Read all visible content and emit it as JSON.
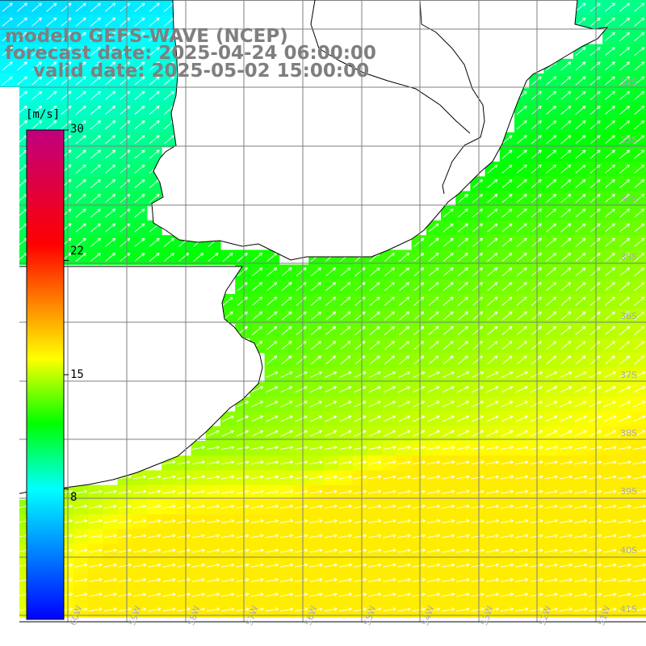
{
  "title": {
    "model": "modelo GEFS-WAVE (NCEP)",
    "forecast": "forecast date: 2025-04-24 06:00:00",
    "valid": "valid date: 2025-05-02 15:00:00"
  },
  "colorbar": {
    "unit": "[m/s]",
    "min": 0,
    "max": 30,
    "ticks": [
      "30",
      "22",
      "15",
      "8"
    ],
    "tick_values": [
      30,
      22,
      15,
      8
    ],
    "gradient": [
      "#0000ff",
      "#00ffff",
      "#00ff00",
      "#ffff00",
      "#ff0000",
      "#c0007f"
    ]
  },
  "map": {
    "field": "wind speed",
    "lat_labels": [
      "32S",
      "33S",
      "34S",
      "35S",
      "36S",
      "37S",
      "38S",
      "39S",
      "40S",
      "41S"
    ],
    "lon_labels": [
      "60W",
      "59W",
      "58W",
      "57W",
      "56W",
      "55W",
      "54W",
      "53W",
      "52W",
      "51W"
    ],
    "land_color": "#ffffff",
    "grid_color": "#7f7f7f",
    "arrow_color": "#ffffff",
    "vector_direction": "toward NE"
  }
}
